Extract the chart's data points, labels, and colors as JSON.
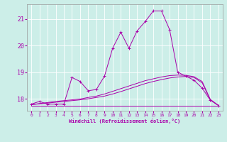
{
  "xlabel": "Windchill (Refroidissement éolien,°C)",
  "background_color": "#cceee8",
  "grid_color": "#ffffff",
  "line_color": "#aa00aa",
  "x_ticks": [
    0,
    1,
    2,
    3,
    4,
    5,
    6,
    7,
    8,
    9,
    10,
    11,
    12,
    13,
    14,
    15,
    16,
    17,
    18,
    19,
    20,
    21,
    22,
    23
  ],
  "y_ticks": [
    18,
    19,
    20,
    21
  ],
  "ylim": [
    17.55,
    21.55
  ],
  "xlim": [
    -0.5,
    23.5
  ],
  "series_main": [
    17.8,
    17.9,
    17.8,
    17.8,
    17.8,
    18.8,
    18.65,
    18.3,
    18.35,
    18.85,
    19.9,
    20.5,
    19.9,
    20.55,
    20.9,
    21.3,
    21.3,
    20.6,
    19.0,
    18.85,
    18.7,
    18.4,
    17.95,
    17.75
  ],
  "series_flat": [
    17.75,
    17.75,
    17.75,
    17.75,
    17.75,
    17.75,
    17.75,
    17.75,
    17.75,
    17.75,
    17.75,
    17.75,
    17.75,
    17.75,
    17.75,
    17.75,
    17.75,
    17.75,
    17.75,
    17.75,
    17.75,
    17.75,
    17.75,
    17.75
  ],
  "series_rising1": [
    17.78,
    17.82,
    17.86,
    17.9,
    17.93,
    17.96,
    17.99,
    18.05,
    18.1,
    18.18,
    18.28,
    18.38,
    18.48,
    18.58,
    18.68,
    18.75,
    18.82,
    18.87,
    18.89,
    18.88,
    18.83,
    18.65,
    17.98,
    17.75
  ],
  "series_rising2": [
    17.78,
    17.81,
    17.84,
    17.87,
    17.9,
    17.93,
    17.96,
    18.0,
    18.05,
    18.1,
    18.18,
    18.27,
    18.37,
    18.47,
    18.57,
    18.65,
    18.72,
    18.78,
    18.82,
    18.84,
    18.8,
    18.6,
    17.96,
    17.75
  ]
}
